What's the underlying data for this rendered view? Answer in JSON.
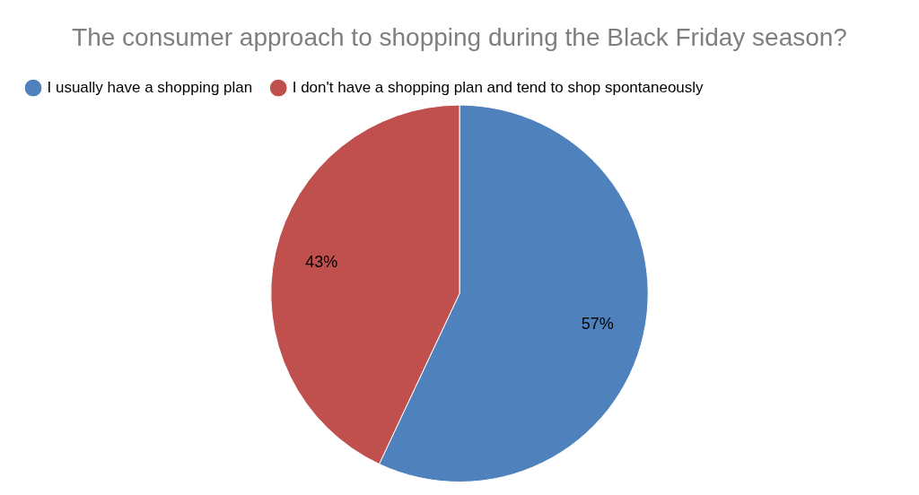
{
  "chart_data": {
    "type": "pie",
    "title": "The consumer approach to shopping during the Black Friday season?",
    "categories": [
      "I usually have a shopping plan",
      "I don't have a shopping plan and tend to shop spontaneously"
    ],
    "values": [
      57,
      43
    ],
    "colors": [
      "#4f81bd",
      "#c0504d"
    ],
    "value_labels": [
      "57%",
      "43%"
    ],
    "legend": "top left"
  }
}
